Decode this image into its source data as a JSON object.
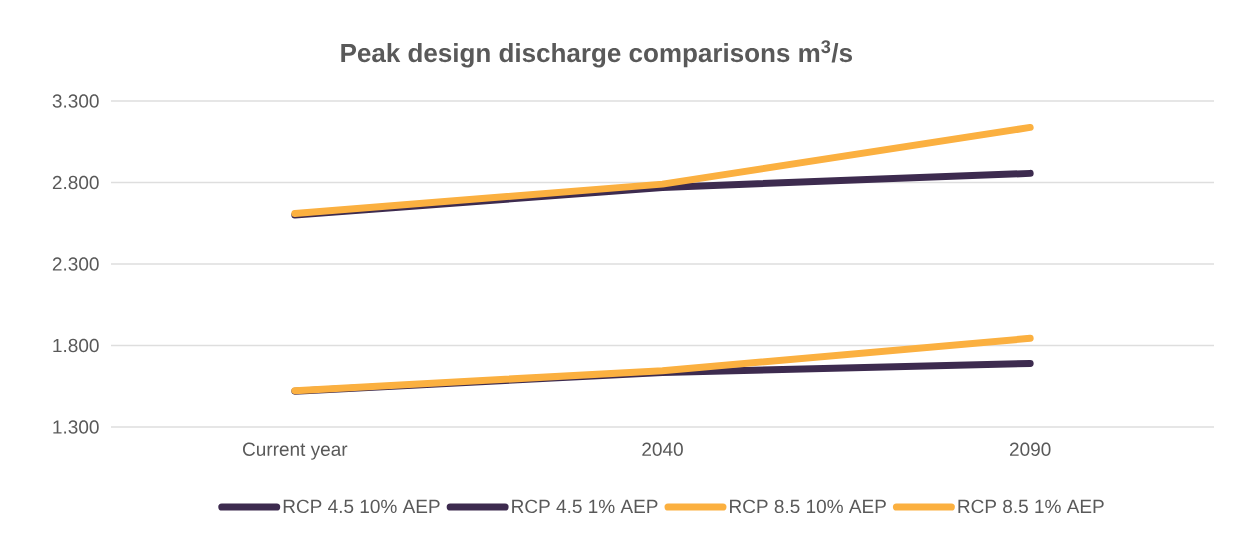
{
  "chart_data": {
    "type": "line",
    "title": "Peak design discharge comparisons m$^{3}$/s",
    "categories": [
      "Current year",
      "2040",
      "2090"
    ],
    "series": [
      {
        "name": "RCP 4.5 10% AEP",
        "color": "#3d2b4f",
        "values": [
          1.52,
          1.635,
          1.69
        ]
      },
      {
        "name": "RCP 4.5 1% AEP",
        "color": "#3d2b4f",
        "values": [
          2.6,
          2.77,
          2.856
        ]
      },
      {
        "name": "RCP 8.5 10% AEP",
        "color": "#fbb040",
        "values": [
          1.523,
          1.645,
          1.844
        ]
      },
      {
        "name": "RCP 8.5 1% AEP",
        "color": "#fbb040",
        "values": [
          2.61,
          2.79,
          3.138
        ]
      }
    ],
    "ylim": [
      1.3,
      3.3
    ],
    "yticks": [
      {
        "value": 1.3,
        "label": "1.300"
      },
      {
        "value": 1.8,
        "label": "1.800"
      },
      {
        "value": 2.3,
        "label": "2.300"
      },
      {
        "value": 2.8,
        "label": "2.800"
      },
      {
        "value": 3.3,
        "label": "3.300"
      }
    ],
    "grid": "y",
    "legend": "bottom",
    "marker": "none",
    "line_style": "solid"
  }
}
